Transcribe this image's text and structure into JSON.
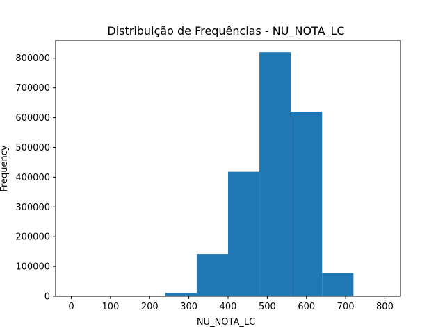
{
  "chart_data": {
    "type": "bar",
    "title": "Distribuição de Frequências - NU_NOTA_LC",
    "xlabel": "NU_NOTA_LC",
    "ylabel": "Frequency",
    "xlim": [
      -40,
      840
    ],
    "ylim": [
      0,
      860000
    ],
    "xticks": [
      0,
      100,
      200,
      300,
      400,
      500,
      600,
      700,
      800
    ],
    "yticks": [
      0,
      100000,
      200000,
      300000,
      400000,
      500000,
      600000,
      700000,
      800000
    ],
    "bins": [
      {
        "x0": 0,
        "x1": 80,
        "value": 0
      },
      {
        "x0": 80,
        "x1": 160,
        "value": 0
      },
      {
        "x0": 160,
        "x1": 240,
        "value": 0
      },
      {
        "x0": 240,
        "x1": 320,
        "value": 11000
      },
      {
        "x0": 320,
        "x1": 400,
        "value": 142000
      },
      {
        "x0": 400,
        "x1": 480,
        "value": 418000
      },
      {
        "x0": 480,
        "x1": 560,
        "value": 820000
      },
      {
        "x0": 560,
        "x1": 640,
        "value": 620000
      },
      {
        "x0": 640,
        "x1": 720,
        "value": 78000
      },
      {
        "x0": 720,
        "x1": 800,
        "value": 0
      }
    ],
    "color": "#1f77b4",
    "grid": false,
    "legend": "none"
  }
}
